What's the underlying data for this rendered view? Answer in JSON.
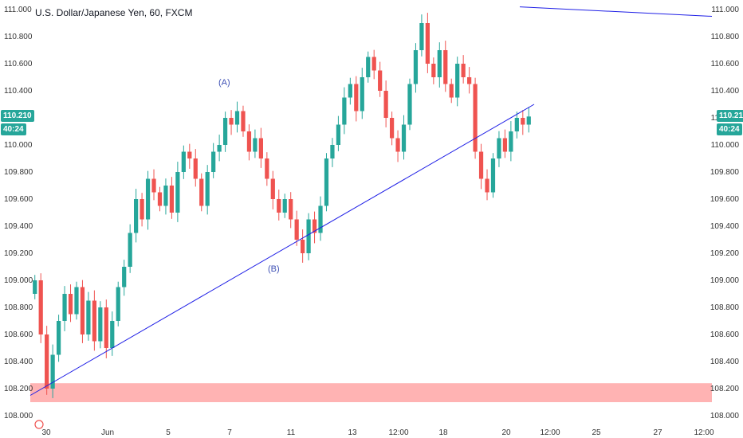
{
  "header": {
    "title": "U.S. Dollar/Japanese Yen, 60, FXCM"
  },
  "price_badge": {
    "price": "110.210",
    "countdown": "40:24"
  },
  "wave_labels": [
    {
      "text": "(A)",
      "x": "6 Jun",
      "y": 110.45
    },
    {
      "text": "(B)",
      "x": "10 Jun",
      "y": 109.08
    }
  ],
  "colors": {
    "up": "#26a69a",
    "down": "#ef5350",
    "trendline": "#1e1ee6",
    "support_zone": "#ffb3b3",
    "badge": "#26a69a"
  },
  "chart_data": {
    "type": "candlestick",
    "title": "U.S. Dollar/Japanese Yen, 60, FXCM",
    "ylim": [
      108.0,
      111.0
    ],
    "y_ticks": [
      "111.000",
      "110.800",
      "110.600",
      "110.400",
      "110.200",
      "110.000",
      "109.800",
      "109.600",
      "109.400",
      "109.200",
      "109.000",
      "108.800",
      "108.600",
      "108.400",
      "108.200",
      "108.000"
    ],
    "x_ticks": [
      "30",
      "Jun",
      "5",
      "7",
      "11",
      "13",
      "12:00",
      "18",
      "20",
      "12:00",
      "25",
      "27",
      "12:00"
    ],
    "support_zone": [
      108.1,
      108.24
    ],
    "last_price": 110.21,
    "closes": [
      109.0,
      108.6,
      108.2,
      108.45,
      108.7,
      108.9,
      108.75,
      108.95,
      108.6,
      108.85,
      108.55,
      108.8,
      108.5,
      108.7,
      108.95,
      109.1,
      109.35,
      109.6,
      109.45,
      109.75,
      109.65,
      109.55,
      109.7,
      109.5,
      109.8,
      109.95,
      109.9,
      109.75,
      109.55,
      109.8,
      109.95,
      110.0,
      110.2,
      110.15,
      110.25,
      110.1,
      109.95,
      110.05,
      109.9,
      109.75,
      109.6,
      109.5,
      109.6,
      109.45,
      109.3,
      109.2,
      109.45,
      109.35,
      109.55,
      109.9,
      110.0,
      110.15,
      110.35,
      110.45,
      110.25,
      110.5,
      110.65,
      110.55,
      110.4,
      110.2,
      110.05,
      109.95,
      110.15,
      110.45,
      110.7,
      110.9,
      110.6,
      110.5,
      110.7,
      110.45,
      110.35,
      110.6,
      110.5,
      110.45,
      109.95,
      109.75,
      109.65,
      109.9,
      110.05,
      109.95,
      110.1,
      110.2,
      110.15,
      110.21
    ],
    "trendlines": [
      {
        "from": [
          "29 May",
          108.15
        ],
        "to": [
          "20 Jun",
          110.3
        ]
      },
      {
        "from": [
          "22 Jun",
          111.02
        ],
        "to": [
          "28 Jun",
          110.95
        ]
      }
    ]
  }
}
